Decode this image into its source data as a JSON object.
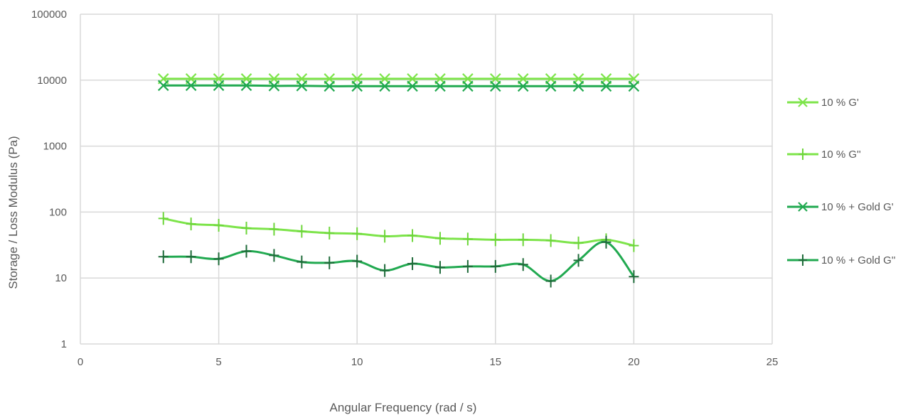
{
  "chart_data": {
    "type": "line",
    "title": "",
    "xlabel": "Angular Frequency (rad / s)",
    "ylabel": "Storage / Loss Modulus (Pa)",
    "xlim": [
      0,
      25
    ],
    "ylim": [
      1,
      100000
    ],
    "yscale": "log",
    "grid": true,
    "legend_position": "right",
    "x_ticks": [
      "0",
      "5",
      "10",
      "15",
      "20",
      "25"
    ],
    "y_ticks": [
      "1",
      "10",
      "100",
      "1000",
      "10000",
      "100000"
    ],
    "x": [
      3,
      4,
      5,
      6,
      7,
      8,
      9,
      10,
      11,
      12,
      13,
      14,
      15,
      16,
      17,
      18,
      19,
      20
    ],
    "series": [
      {
        "name": "10 % G'",
        "marker": "x",
        "color": "#7de44a",
        "values": [
          10500,
          10500,
          10500,
          10500,
          10500,
          10500,
          10500,
          10500,
          10500,
          10500,
          10500,
          10500,
          10500,
          10500,
          10500,
          10500,
          10500,
          10500
        ]
      },
      {
        "name": "10 % G''",
        "marker": "plus",
        "color": "#7de44a",
        "values": [
          80,
          66,
          63,
          57,
          55,
          51,
          48,
          47,
          43,
          44,
          40,
          39,
          38,
          38,
          37,
          34,
          38,
          31
        ]
      },
      {
        "name": "10 % + Gold G'",
        "marker": "x",
        "color": "#21a950",
        "values": [
          8300,
          8300,
          8300,
          8300,
          8200,
          8200,
          8100,
          8100,
          8100,
          8100,
          8100,
          8100,
          8100,
          8100,
          8100,
          8100,
          8100,
          8100
        ]
      },
      {
        "name": "10 % + Gold G''",
        "marker": "plus",
        "color": "#21a950",
        "values": [
          21,
          21,
          19.5,
          25.5,
          22,
          17.5,
          17,
          18,
          13,
          16.5,
          14.5,
          15,
          15,
          16,
          9,
          18.5,
          35,
          10.5
        ]
      }
    ]
  }
}
